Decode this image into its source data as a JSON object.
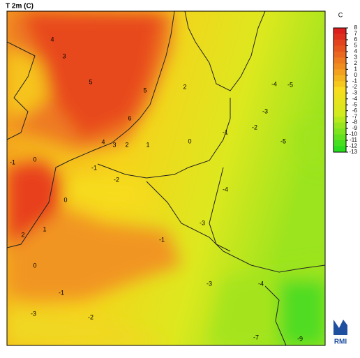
{
  "title": "T 2m (C)",
  "colorbar": {
    "unit": "C",
    "levels": [
      8,
      7,
      6,
      5,
      4,
      3,
      2,
      1,
      0,
      -1,
      -2,
      -3,
      -4,
      -5,
      -6,
      -7,
      -8,
      -9,
      -10,
      -11,
      -12,
      -13
    ]
  },
  "contour_labels": [
    4,
    3,
    5,
    5,
    6,
    4,
    3,
    2,
    1,
    0,
    -1,
    0,
    -1,
    -2,
    0,
    1,
    2,
    0,
    -1,
    -2,
    -3,
    -1,
    -3,
    -4,
    -1,
    -2,
    -3,
    -4,
    -5,
    -5,
    -3,
    -4,
    -7,
    -9,
    2
  ],
  "logo": "RMI"
}
